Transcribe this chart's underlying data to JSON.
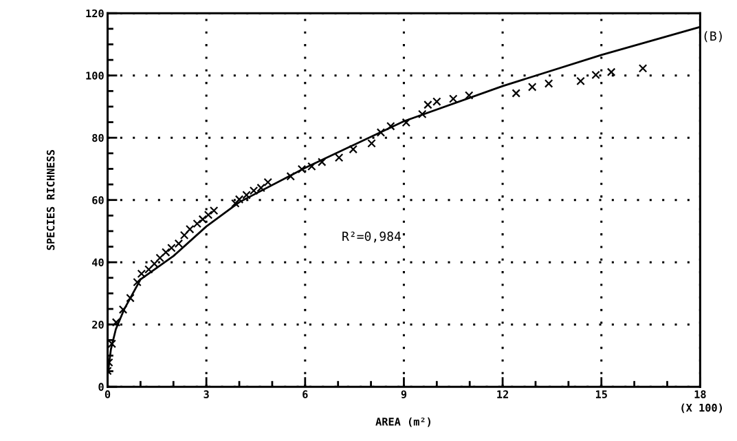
{
  "chart_data": {
    "type": "scatter",
    "xlabel": "AREA (m²)",
    "ylabel": "SPECIES RICHNESS",
    "xlim": [
      0,
      18
    ],
    "xticks": [
      0,
      3,
      6,
      9,
      12,
      15,
      18
    ],
    "ylim": [
      0,
      120
    ],
    "yticks": [
      0,
      20,
      40,
      60,
      80,
      100,
      120
    ],
    "grid": true,
    "marker": "cross",
    "annotations": [
      "(B)",
      "(X 100)",
      "R²=0,984"
    ],
    "series": [
      {
        "color": "#000000",
        "x": [
          0.0,
          0.04,
          0.13,
          0.26,
          0.47,
          0.69,
          0.9,
          1.03,
          1.25,
          1.42,
          1.59,
          1.77,
          1.94,
          2.16,
          2.33,
          2.5,
          2.72,
          2.89,
          3.06,
          3.23,
          3.88,
          4.0,
          4.22,
          4.44,
          4.66,
          4.87,
          5.56,
          5.9,
          6.2,
          6.51,
          7.03,
          7.46,
          8.02,
          8.3,
          8.6,
          9.07,
          9.56,
          9.73,
          10.0,
          10.5,
          10.98,
          12.41,
          12.9,
          13.4,
          14.37,
          14.83,
          15.3,
          16.26
        ],
        "values": [
          5.1,
          7.8,
          13.8,
          20.7,
          24.8,
          28.5,
          33.6,
          36.3,
          37.7,
          39.5,
          41.4,
          43.2,
          44.6,
          46,
          48.7,
          50.6,
          52.4,
          53.8,
          55.2,
          56.6,
          58.9,
          60.2,
          61.6,
          63,
          63.9,
          65.7,
          67.6,
          69.9,
          70.8,
          72.2,
          73.6,
          76.3,
          78.2,
          81.7,
          83.7,
          84.9,
          87.6,
          90.6,
          91.6,
          92.5,
          93.6,
          94.3,
          96.3,
          97.4,
          98.2,
          100.2,
          101.1,
          102.3
        ]
      },
      {
        "type": "line",
        "color": "#000000",
        "marker": "none",
        "line_style": "solid",
        "x": [
          0,
          0.1,
          0.25,
          0.5,
          1,
          2,
          3,
          4,
          6,
          9,
          12,
          15,
          18
        ],
        "values": [
          3.7,
          12,
          18.5,
          24.8,
          34.5,
          42,
          51.5,
          59.3,
          70.3,
          85.3,
          96.6,
          106.6,
          115.6
        ]
      }
    ]
  }
}
